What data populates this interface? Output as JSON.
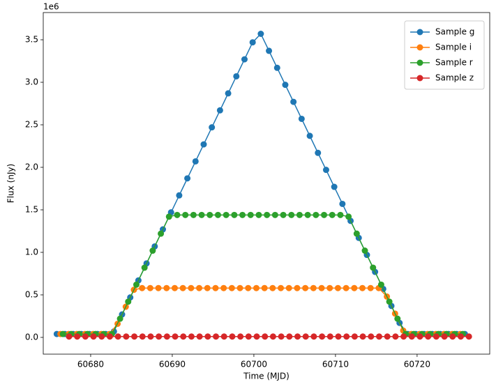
{
  "chart_data": {
    "type": "line",
    "x_label": "Time (MJD)",
    "y_label": "Flux (nJy)",
    "y_offset_label": "1e6",
    "xlim": [
      60674.19,
      60728.9
    ],
    "ylim": [
      -0.197,
      3.82
    ],
    "xticks": [
      60680,
      60690,
      60700,
      60710,
      60720
    ],
    "yticks": [
      {
        "value": 0,
        "label": "0.0"
      },
      {
        "value": 0.5,
        "label": "0.5"
      },
      {
        "value": 1,
        "label": "1.0"
      },
      {
        "value": 1.5,
        "label": "1.5"
      },
      {
        "value": 2,
        "label": "2.0"
      },
      {
        "value": 2.5,
        "label": "2.5"
      },
      {
        "value": 3,
        "label": "3.0"
      },
      {
        "value": 3.5,
        "label": "3.5"
      }
    ],
    "grid": false,
    "legend": "upper right",
    "markers": true,
    "series": [
      {
        "name": "Sample g",
        "color": "#1f77b4",
        "x": [
          60675.85,
          60676.85,
          60677.85,
          60678.85,
          60679.85,
          60680.85,
          60681.85,
          60682.85,
          60683.85,
          60684.85,
          60685.85,
          60686.85,
          60687.85,
          60688.85,
          60689.85,
          60690.85,
          60691.85,
          60692.85,
          60693.85,
          60694.85,
          60695.85,
          60696.85,
          60697.85,
          60698.85,
          60699.85,
          60700.85,
          60701.85,
          60702.85,
          60703.85,
          60704.85,
          60705.85,
          60706.85,
          60707.85,
          60708.85,
          60709.85,
          60710.85,
          60711.85,
          60712.85,
          60713.85,
          60714.85,
          60715.85,
          60716.85,
          60717.85,
          60718.85,
          60719.85,
          60720.85,
          60721.85,
          60722.85,
          60723.85,
          60724.85,
          60725.85
        ],
        "values": [
          0.04,
          0.04,
          0.04,
          0.04,
          0.04,
          0.04,
          0.04,
          0.07,
          0.27,
          0.47,
          0.67,
          0.87,
          1.07,
          1.27,
          1.47,
          1.67,
          1.87,
          2.07,
          2.27,
          2.47,
          2.67,
          2.87,
          3.07,
          3.27,
          3.47,
          3.57,
          3.37,
          3.17,
          2.97,
          2.77,
          2.57,
          2.37,
          2.17,
          1.97,
          1.77,
          1.57,
          1.37,
          1.17,
          0.97,
          0.77,
          0.57,
          0.37,
          0.17,
          0.04,
          0.04,
          0.04,
          0.04,
          0.04,
          0.04,
          0.04,
          0.04
        ]
      },
      {
        "name": "Sample i",
        "color": "#ff7f0e",
        "x": [
          60676.3,
          60677.3,
          60678.3,
          60679.3,
          60680.3,
          60681.3,
          60682.3,
          60683.3,
          60684.3,
          60685.3,
          60686.3,
          60687.3,
          60688.3,
          60689.3,
          60690.3,
          60691.3,
          60692.3,
          60693.3,
          60694.3,
          60695.3,
          60696.3,
          60697.3,
          60698.3,
          60699.3,
          60700.3,
          60701.3,
          60702.3,
          60703.3,
          60704.3,
          60705.3,
          60706.3,
          60707.3,
          60708.3,
          60709.3,
          60710.3,
          60711.3,
          60712.3,
          60713.3,
          60714.3,
          60715.3,
          60716.3,
          60717.3,
          60718.3,
          60719.3,
          60720.3,
          60721.3,
          60722.3,
          60723.3,
          60724.3,
          60725.3
        ],
        "values": [
          0.04,
          0.04,
          0.04,
          0.04,
          0.04,
          0.04,
          0.04,
          0.16,
          0.36,
          0.56,
          0.58,
          0.58,
          0.58,
          0.58,
          0.58,
          0.58,
          0.58,
          0.58,
          0.58,
          0.58,
          0.58,
          0.58,
          0.58,
          0.58,
          0.58,
          0.58,
          0.58,
          0.58,
          0.58,
          0.58,
          0.58,
          0.58,
          0.58,
          0.58,
          0.58,
          0.58,
          0.58,
          0.58,
          0.58,
          0.58,
          0.48,
          0.28,
          0.08,
          0.04,
          0.04,
          0.04,
          0.04,
          0.04,
          0.04,
          0.04
        ]
      },
      {
        "name": "Sample r",
        "color": "#2ca02c",
        "x": [
          60676.6,
          60677.6,
          60678.6,
          60679.6,
          60680.6,
          60681.6,
          60682.6,
          60683.6,
          60684.6,
          60685.6,
          60686.6,
          60687.6,
          60688.6,
          60689.6,
          60690.6,
          60691.6,
          60692.6,
          60693.6,
          60694.6,
          60695.6,
          60696.6,
          60697.6,
          60698.6,
          60699.6,
          60700.6,
          60701.6,
          60702.6,
          60703.6,
          60704.6,
          60705.6,
          60706.6,
          60707.6,
          60708.6,
          60709.6,
          60710.6,
          60711.6,
          60712.6,
          60713.6,
          60714.6,
          60715.6,
          60716.6,
          60717.6,
          60718.6,
          60719.6,
          60720.6,
          60721.6,
          60722.6,
          60723.6,
          60724.6,
          60725.6
        ],
        "values": [
          0.04,
          0.04,
          0.04,
          0.04,
          0.04,
          0.04,
          0.04,
          0.22,
          0.42,
          0.62,
          0.82,
          1.02,
          1.22,
          1.42,
          1.44,
          1.44,
          1.44,
          1.44,
          1.44,
          1.44,
          1.44,
          1.44,
          1.44,
          1.44,
          1.44,
          1.44,
          1.44,
          1.44,
          1.44,
          1.44,
          1.44,
          1.44,
          1.44,
          1.44,
          1.44,
          1.42,
          1.22,
          1.02,
          0.82,
          0.62,
          0.42,
          0.22,
          0.04,
          0.04,
          0.04,
          0.04,
          0.04,
          0.04,
          0.04,
          0.04
        ]
      },
      {
        "name": "Sample z",
        "color": "#d62728",
        "x": [
          60677.35,
          60678.35,
          60679.35,
          60680.35,
          60681.35,
          60682.35,
          60683.35,
          60684.35,
          60685.35,
          60686.35,
          60687.35,
          60688.35,
          60689.35,
          60690.35,
          60691.35,
          60692.35,
          60693.35,
          60694.35,
          60695.35,
          60696.35,
          60697.35,
          60698.35,
          60699.35,
          60700.35,
          60701.35,
          60702.35,
          60703.35,
          60704.35,
          60705.35,
          60706.35,
          60707.35,
          60708.35,
          60709.35,
          60710.35,
          60711.35,
          60712.35,
          60713.35,
          60714.35,
          60715.35,
          60716.35,
          60717.35,
          60718.35,
          60719.35,
          60720.35,
          60721.35,
          60722.35,
          60723.35,
          60724.35,
          60725.35,
          60726.35
        ],
        "values": [
          0.01,
          0.01,
          0.01,
          0.01,
          0.01,
          0.01,
          0.01,
          0.01,
          0.01,
          0.01,
          0.01,
          0.01,
          0.01,
          0.01,
          0.01,
          0.01,
          0.01,
          0.01,
          0.01,
          0.01,
          0.01,
          0.01,
          0.01,
          0.01,
          0.01,
          0.01,
          0.01,
          0.01,
          0.01,
          0.01,
          0.01,
          0.01,
          0.01,
          0.01,
          0.01,
          0.01,
          0.01,
          0.01,
          0.01,
          0.01,
          0.01,
          0.01,
          0.01,
          0.01,
          0.01,
          0.01,
          0.01,
          0.01,
          0.01,
          0.01
        ]
      }
    ]
  }
}
